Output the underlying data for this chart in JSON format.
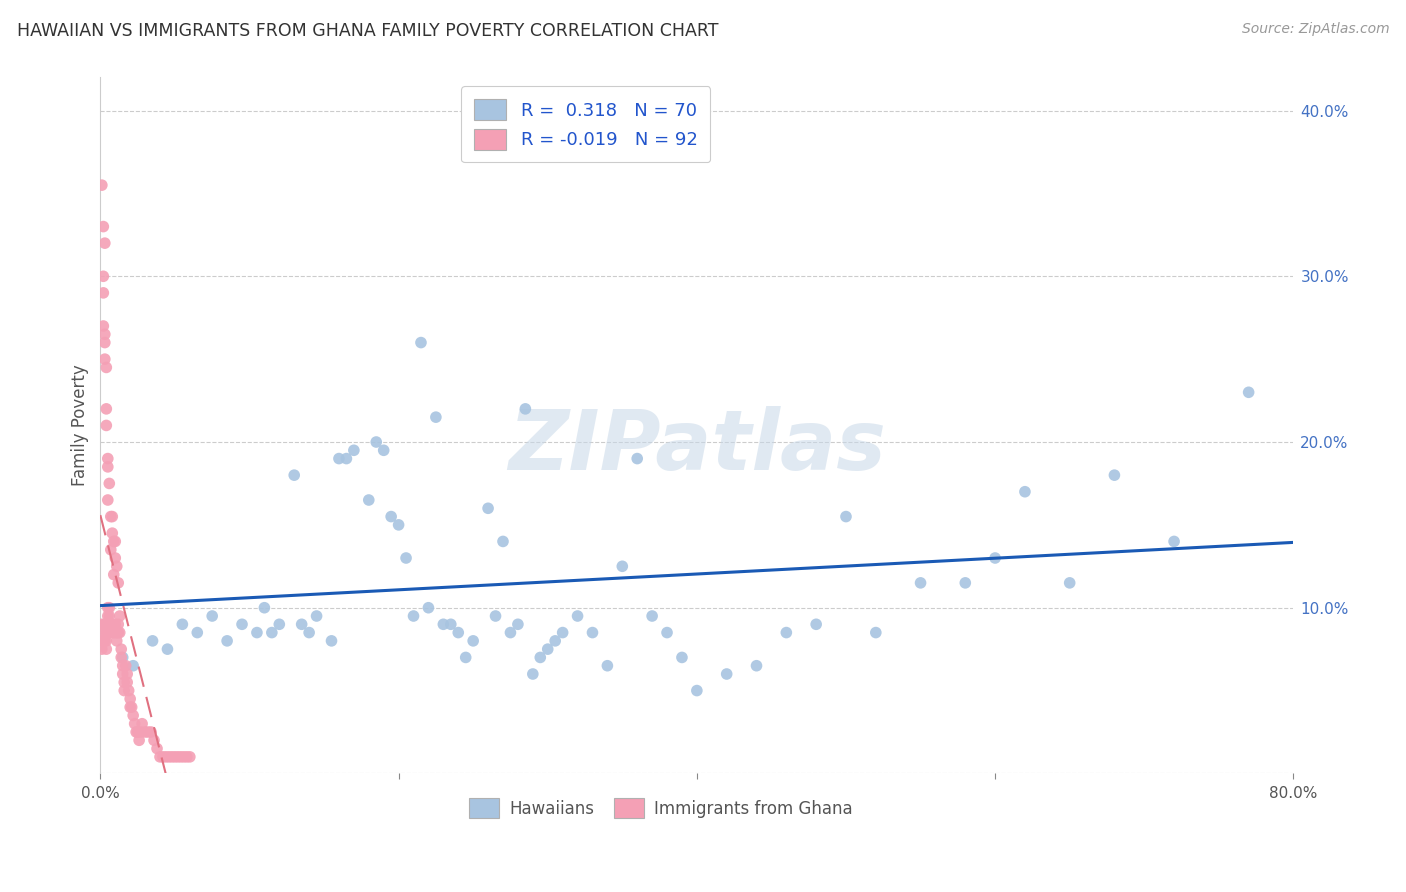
{
  "title": "HAWAIIAN VS IMMIGRANTS FROM GHANA FAMILY POVERTY CORRELATION CHART",
  "source": "Source: ZipAtlas.com",
  "ylabel": "Family Poverty",
  "xlim": [
    0.0,
    0.8
  ],
  "ylim": [
    0.0,
    0.42
  ],
  "hawaiian_color": "#a8c4e0",
  "ghana_color": "#f4a0b5",
  "hawaiian_line_color": "#1a5ab5",
  "ghana_line_color": "#e07080",
  "background_color": "#ffffff",
  "watermark_text": "ZIPatlas",
  "legend_R_hawaiian": " 0.318",
  "legend_N_hawaiian": "70",
  "legend_R_ghana": "-0.019",
  "legend_N_ghana": "92",
  "hawaiian_seed": 10,
  "ghana_seed": 20,
  "hawaiian_x": [
    0.015,
    0.022,
    0.035,
    0.045,
    0.055,
    0.065,
    0.075,
    0.085,
    0.095,
    0.105,
    0.11,
    0.115,
    0.12,
    0.13,
    0.135,
    0.14,
    0.145,
    0.155,
    0.16,
    0.165,
    0.17,
    0.18,
    0.185,
    0.19,
    0.195,
    0.2,
    0.205,
    0.21,
    0.215,
    0.22,
    0.225,
    0.23,
    0.235,
    0.24,
    0.245,
    0.25,
    0.26,
    0.265,
    0.27,
    0.275,
    0.28,
    0.285,
    0.29,
    0.295,
    0.3,
    0.305,
    0.31,
    0.32,
    0.33,
    0.34,
    0.35,
    0.36,
    0.37,
    0.38,
    0.39,
    0.4,
    0.42,
    0.44,
    0.46,
    0.48,
    0.5,
    0.52,
    0.55,
    0.58,
    0.6,
    0.62,
    0.65,
    0.68,
    0.72,
    0.77
  ],
  "hawaiian_y": [
    0.07,
    0.065,
    0.08,
    0.075,
    0.09,
    0.085,
    0.095,
    0.08,
    0.09,
    0.085,
    0.1,
    0.085,
    0.09,
    0.18,
    0.09,
    0.085,
    0.095,
    0.08,
    0.19,
    0.19,
    0.195,
    0.165,
    0.2,
    0.195,
    0.155,
    0.15,
    0.13,
    0.095,
    0.26,
    0.1,
    0.215,
    0.09,
    0.09,
    0.085,
    0.07,
    0.08,
    0.16,
    0.095,
    0.14,
    0.085,
    0.09,
    0.22,
    0.06,
    0.07,
    0.075,
    0.08,
    0.085,
    0.095,
    0.085,
    0.065,
    0.125,
    0.19,
    0.095,
    0.085,
    0.07,
    0.05,
    0.06,
    0.065,
    0.085,
    0.09,
    0.155,
    0.085,
    0.115,
    0.115,
    0.13,
    0.17,
    0.115,
    0.18,
    0.14,
    0.23
  ],
  "ghana_x": [
    0.001,
    0.001,
    0.001,
    0.002,
    0.002,
    0.002,
    0.002,
    0.002,
    0.003,
    0.003,
    0.003,
    0.003,
    0.003,
    0.004,
    0.004,
    0.004,
    0.004,
    0.004,
    0.004,
    0.005,
    0.005,
    0.005,
    0.005,
    0.005,
    0.005,
    0.005,
    0.006,
    0.006,
    0.006,
    0.006,
    0.006,
    0.007,
    0.007,
    0.007,
    0.007,
    0.008,
    0.008,
    0.008,
    0.008,
    0.009,
    0.009,
    0.009,
    0.01,
    0.01,
    0.01,
    0.01,
    0.011,
    0.011,
    0.011,
    0.012,
    0.012,
    0.012,
    0.013,
    0.013,
    0.014,
    0.014,
    0.015,
    0.015,
    0.016,
    0.016,
    0.017,
    0.018,
    0.018,
    0.019,
    0.02,
    0.02,
    0.021,
    0.022,
    0.023,
    0.024,
    0.025,
    0.026,
    0.027,
    0.028,
    0.03,
    0.032,
    0.034,
    0.036,
    0.038,
    0.04,
    0.042,
    0.044,
    0.046,
    0.048,
    0.05,
    0.052,
    0.054,
    0.056,
    0.058,
    0.06,
    0.001,
    0.003
  ],
  "ghana_y": [
    0.09,
    0.08,
    0.075,
    0.33,
    0.3,
    0.29,
    0.27,
    0.085,
    0.265,
    0.25,
    0.26,
    0.09,
    0.08,
    0.245,
    0.21,
    0.22,
    0.085,
    0.08,
    0.075,
    0.19,
    0.165,
    0.185,
    0.1,
    0.095,
    0.09,
    0.085,
    0.175,
    0.1,
    0.095,
    0.09,
    0.085,
    0.155,
    0.135,
    0.09,
    0.085,
    0.155,
    0.145,
    0.09,
    0.085,
    0.14,
    0.12,
    0.085,
    0.14,
    0.13,
    0.09,
    0.085,
    0.125,
    0.085,
    0.08,
    0.115,
    0.09,
    0.085,
    0.095,
    0.085,
    0.075,
    0.07,
    0.065,
    0.06,
    0.055,
    0.05,
    0.065,
    0.06,
    0.055,
    0.05,
    0.045,
    0.04,
    0.04,
    0.035,
    0.03,
    0.025,
    0.025,
    0.02,
    0.025,
    0.03,
    0.025,
    0.025,
    0.025,
    0.02,
    0.015,
    0.01,
    0.01,
    0.01,
    0.01,
    0.01,
    0.01,
    0.01,
    0.01,
    0.01,
    0.01,
    0.01,
    0.355,
    0.32
  ]
}
